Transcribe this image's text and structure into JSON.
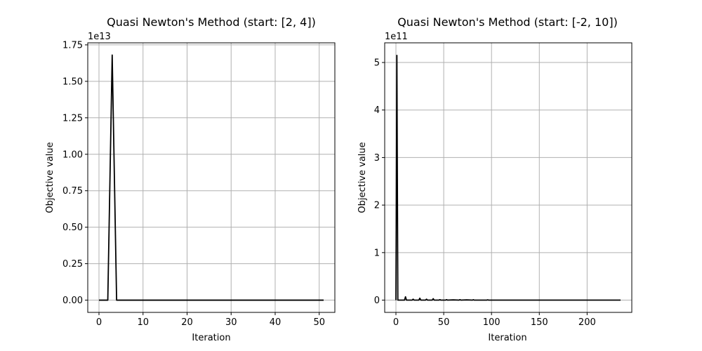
{
  "chart_data": [
    {
      "type": "line",
      "title": "Quasi Newton's Method (start: [2, 4])",
      "xlabel": "Iteration",
      "ylabel": "Objective value",
      "y_offset_text": "1e13",
      "xlim": [
        -2.55,
        53.55
      ],
      "ylim": [
        -0.084,
        1.764
      ],
      "y_scale_factor": 10000000000000.0,
      "xticks": [
        0,
        10,
        20,
        30,
        40,
        50
      ],
      "xtick_labels": [
        "0",
        "10",
        "20",
        "30",
        "40",
        "50"
      ],
      "yticks": [
        0,
        0.25,
        0.5,
        0.75,
        1.0,
        1.25,
        1.5,
        1.75
      ],
      "ytick_labels": [
        "0.00",
        "0.25",
        "0.50",
        "0.75",
        "1.00",
        "1.25",
        "1.50",
        "1.75"
      ],
      "grid": true,
      "series": [
        {
          "color": "#000000",
          "x": [
            0,
            1,
            2,
            3,
            4,
            5,
            10,
            20,
            30,
            40,
            51
          ],
          "y": [
            0,
            0,
            0,
            1.68,
            0,
            0,
            0,
            0,
            0,
            0,
            0
          ]
        }
      ]
    },
    {
      "type": "line",
      "title": "Quasi Newton's Method (start: [-2, 10])",
      "xlabel": "Iteration",
      "ylabel": "Objective value",
      "y_offset_text": "1e11",
      "xlim": [
        -11.75,
        246.75
      ],
      "ylim": [
        -0.258,
        5.414
      ],
      "y_scale_factor": 100000000000.0,
      "xticks": [
        0,
        50,
        100,
        150,
        200
      ],
      "xtick_labels": [
        "0",
        "50",
        "100",
        "150",
        "200"
      ],
      "yticks": [
        0,
        1,
        2,
        3,
        4,
        5
      ],
      "ytick_labels": [
        "0",
        "1",
        "2",
        "3",
        "4",
        "5"
      ],
      "grid": true,
      "series": [
        {
          "color": "#000000",
          "x": [
            0,
            1,
            2,
            3,
            9,
            10,
            11,
            12,
            17,
            18,
            19,
            24,
            25,
            26,
            31,
            32,
            33,
            38,
            39,
            40,
            45,
            46,
            47,
            52,
            53,
            54,
            60,
            66,
            67,
            68,
            74,
            80,
            81,
            82,
            95,
            96,
            97,
            110,
            235
          ],
          "y": [
            0,
            5.15,
            0,
            0,
            0,
            0.07,
            0,
            0,
            0,
            0.02,
            0,
            0,
            0.04,
            0,
            0,
            0.02,
            0,
            0,
            0.03,
            0,
            0,
            0.01,
            0,
            0,
            0.01,
            0,
            0.005,
            0,
            0.01,
            0,
            0.005,
            0,
            0.008,
            0,
            0,
            0.006,
            0,
            0,
            0
          ]
        }
      ]
    }
  ]
}
